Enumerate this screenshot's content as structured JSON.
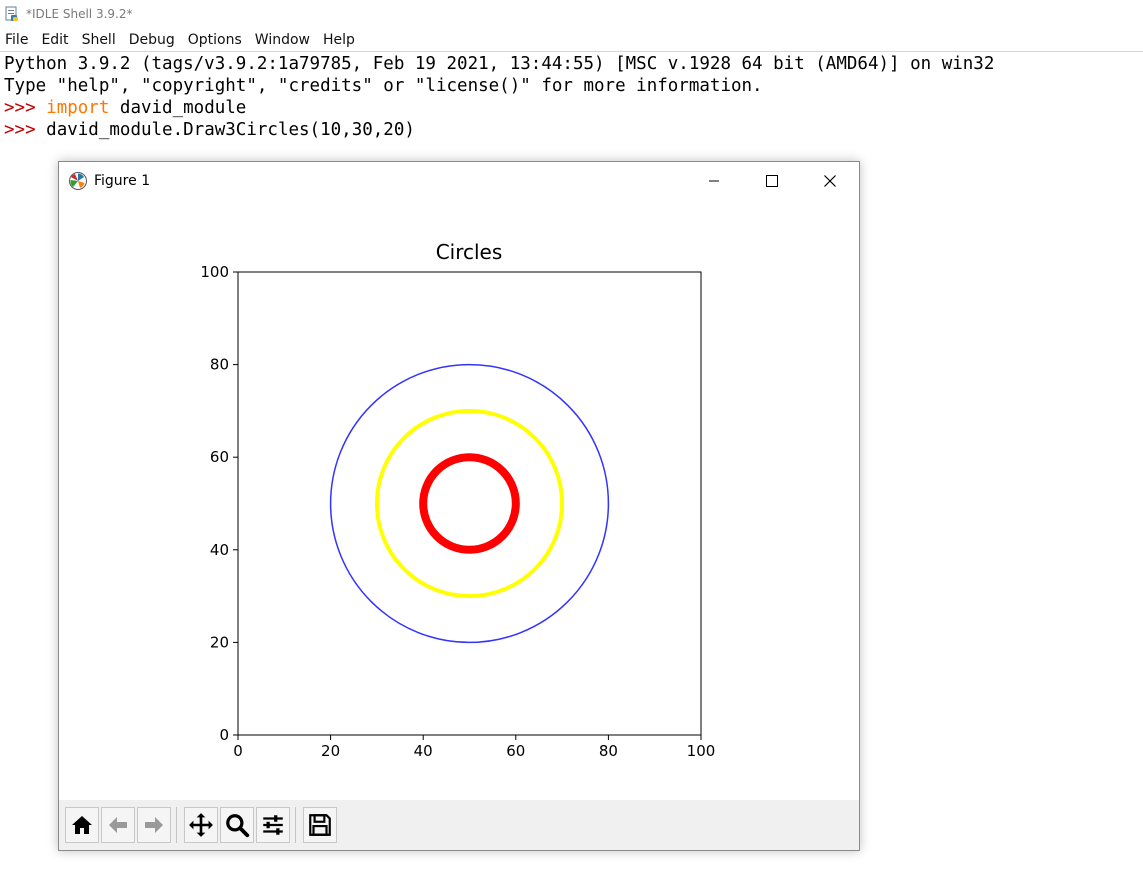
{
  "window": {
    "title": "*IDLE Shell 3.9.2*",
    "icon": "python-idle-icon"
  },
  "menubar": {
    "items": [
      {
        "label": "File"
      },
      {
        "label": "Edit"
      },
      {
        "label": "Shell"
      },
      {
        "label": "Debug"
      },
      {
        "label": "Options"
      },
      {
        "label": "Window"
      },
      {
        "label": "Help"
      }
    ]
  },
  "shell": {
    "banner_line1": "Python 3.9.2 (tags/v3.9.2:1a79785, Feb 19 2021, 13:44:55) [MSC v.1928 64 bit (AMD64)] on win32",
    "banner_line2": "Type \"help\", \"copyright\", \"credits\" or \"license()\" for more information.",
    "prompt": ">>> ",
    "cmd1_keyword": "import",
    "cmd1_rest": " david_module",
    "cmd2": "david_module.Draw3Circles(10,30,20)",
    "colors": {
      "prompt": "#c00000",
      "keyword": "#ff7700"
    }
  },
  "figure_window": {
    "title": "Figure 1",
    "icon": "matplotlib-icon",
    "controls": {
      "minimize": "minimize-icon",
      "maximize": "maximize-icon",
      "close": "close-icon"
    },
    "toolbar": [
      {
        "name": "home",
        "icon": "home-icon"
      },
      {
        "name": "back",
        "icon": "arrow-left-icon"
      },
      {
        "name": "forward",
        "icon": "arrow-right-icon"
      },
      {
        "name": "pan",
        "icon": "move-icon"
      },
      {
        "name": "zoom",
        "icon": "magnifier-icon"
      },
      {
        "name": "subplots",
        "icon": "sliders-icon"
      },
      {
        "name": "save",
        "icon": "floppy-disk-icon"
      }
    ]
  },
  "chart_data": {
    "type": "scatter",
    "title": "Circles",
    "xlabel": "",
    "ylabel": "",
    "xlim": [
      0,
      100
    ],
    "ylim": [
      0,
      100
    ],
    "xticks": [
      0,
      20,
      40,
      60,
      80,
      100
    ],
    "yticks": [
      0,
      20,
      40,
      60,
      80,
      100
    ],
    "grid": false,
    "circles": [
      {
        "cx": 50,
        "cy": 50,
        "r": 30,
        "color": "#3333ff",
        "linewidth": "thin"
      },
      {
        "cx": 50,
        "cy": 50,
        "r": 20,
        "color": "#ffff00",
        "linewidth": "medium"
      },
      {
        "cx": 50,
        "cy": 50,
        "r": 10,
        "color": "#ff0000",
        "linewidth": "thick"
      }
    ]
  }
}
